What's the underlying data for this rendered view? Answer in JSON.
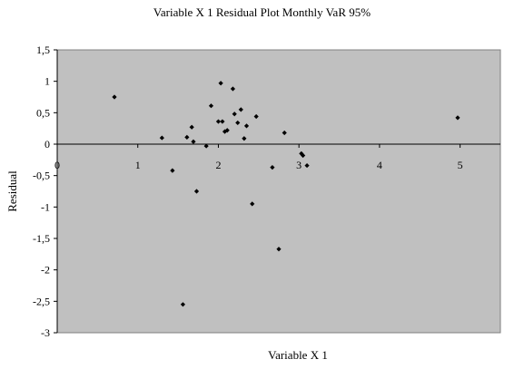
{
  "chart_data": {
    "type": "scatter",
    "title": "Variable X 1 Residual Plot Monthly VaR 95%",
    "xlabel": "Variable X 1",
    "ylabel": "Residual",
    "xlim": [
      0,
      5.5
    ],
    "ylim": [
      -3,
      1.5
    ],
    "x_ticks": [
      0,
      1,
      2,
      3,
      4,
      5
    ],
    "x_tick_labels": [
      "0",
      "1",
      "2",
      "3",
      "4",
      "5"
    ],
    "y_ticks": [
      1.5,
      1,
      0.5,
      0,
      -0.5,
      -1,
      -1.5,
      -2,
      -2.5,
      -3
    ],
    "y_tick_labels": [
      "1,5",
      "1",
      "0,5",
      "0",
      "-0,5",
      "-1",
      "-1,5",
      "-2",
      "-2,5",
      "-3"
    ],
    "grid": false,
    "plot_background": "#c0c0c0",
    "marker_color": "#000000",
    "points": [
      {
        "x": 0.71,
        "y": 0.75
      },
      {
        "x": 1.3,
        "y": 0.1
      },
      {
        "x": 1.43,
        "y": -0.42
      },
      {
        "x": 1.56,
        "y": -2.55
      },
      {
        "x": 1.61,
        "y": 0.11
      },
      {
        "x": 1.67,
        "y": 0.27
      },
      {
        "x": 1.69,
        "y": 0.04
      },
      {
        "x": 1.73,
        "y": -0.75
      },
      {
        "x": 1.85,
        "y": -0.03
      },
      {
        "x": 1.91,
        "y": 0.61
      },
      {
        "x": 2.0,
        "y": 0.36
      },
      {
        "x": 2.03,
        "y": 0.97
      },
      {
        "x": 2.05,
        "y": 0.36
      },
      {
        "x": 2.08,
        "y": 0.2
      },
      {
        "x": 2.11,
        "y": 0.22
      },
      {
        "x": 2.18,
        "y": 0.88
      },
      {
        "x": 2.2,
        "y": 0.48
      },
      {
        "x": 2.24,
        "y": 0.34
      },
      {
        "x": 2.28,
        "y": 0.55
      },
      {
        "x": 2.32,
        "y": 0.09
      },
      {
        "x": 2.35,
        "y": 0.29
      },
      {
        "x": 2.42,
        "y": -0.95
      },
      {
        "x": 2.47,
        "y": 0.44
      },
      {
        "x": 2.67,
        "y": -0.37
      },
      {
        "x": 2.75,
        "y": -1.67
      },
      {
        "x": 2.82,
        "y": 0.18
      },
      {
        "x": 3.03,
        "y": -0.15
      },
      {
        "x": 3.05,
        "y": -0.18
      },
      {
        "x": 3.1,
        "y": -0.34
      },
      {
        "x": 4.97,
        "y": 0.42
      }
    ]
  }
}
